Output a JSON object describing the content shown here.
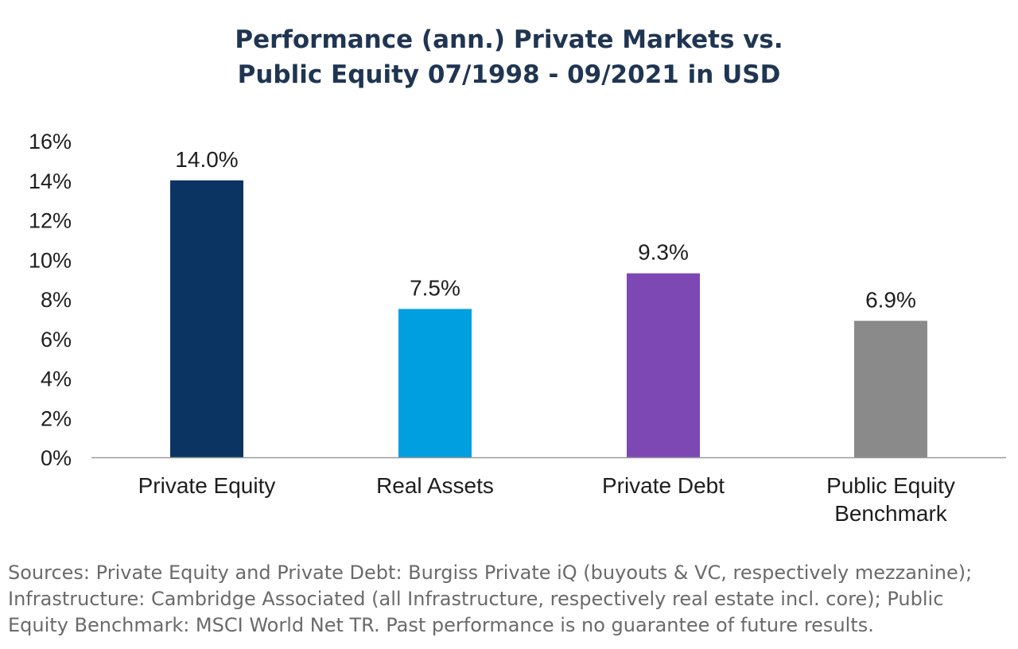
{
  "chart_data": {
    "type": "bar",
    "title": [
      "Performance (ann.) Private Markets vs.",
      "Public Equity 07/1998 - 09/2021 in USD"
    ],
    "categories": [
      [
        "Private Equity"
      ],
      [
        "Real Assets"
      ],
      [
        "Private Debt"
      ],
      [
        "Public Equity",
        "Benchmark"
      ]
    ],
    "values": [
      14.0,
      7.5,
      9.3,
      6.9
    ],
    "data_labels": [
      "14.0%",
      "7.5%",
      "9.3%",
      "6.9%"
    ],
    "colors": [
      "#0b3463",
      "#00a0e0",
      "#7d47b4",
      "#8a8a8a"
    ],
    "ylim": [
      0,
      16
    ],
    "yticks": [
      0,
      2,
      4,
      6,
      8,
      10,
      12,
      14,
      16
    ],
    "ytick_labels": [
      "0%",
      "2%",
      "4%",
      "6%",
      "8%",
      "10%",
      "12%",
      "14%",
      "16%"
    ],
    "grid": false,
    "legend": "none"
  },
  "source_note": [
    "Sources: Private Equity and Private Debt: Burgiss Private iQ (buyouts & VC, respectively mezzanine);",
    "Infrastructure: Cambridge Associated (all Infrastructure, respectively real estate incl. core); Public",
    "Equity Benchmark: MSCI World Net TR. Past performance is no guarantee of future results."
  ]
}
